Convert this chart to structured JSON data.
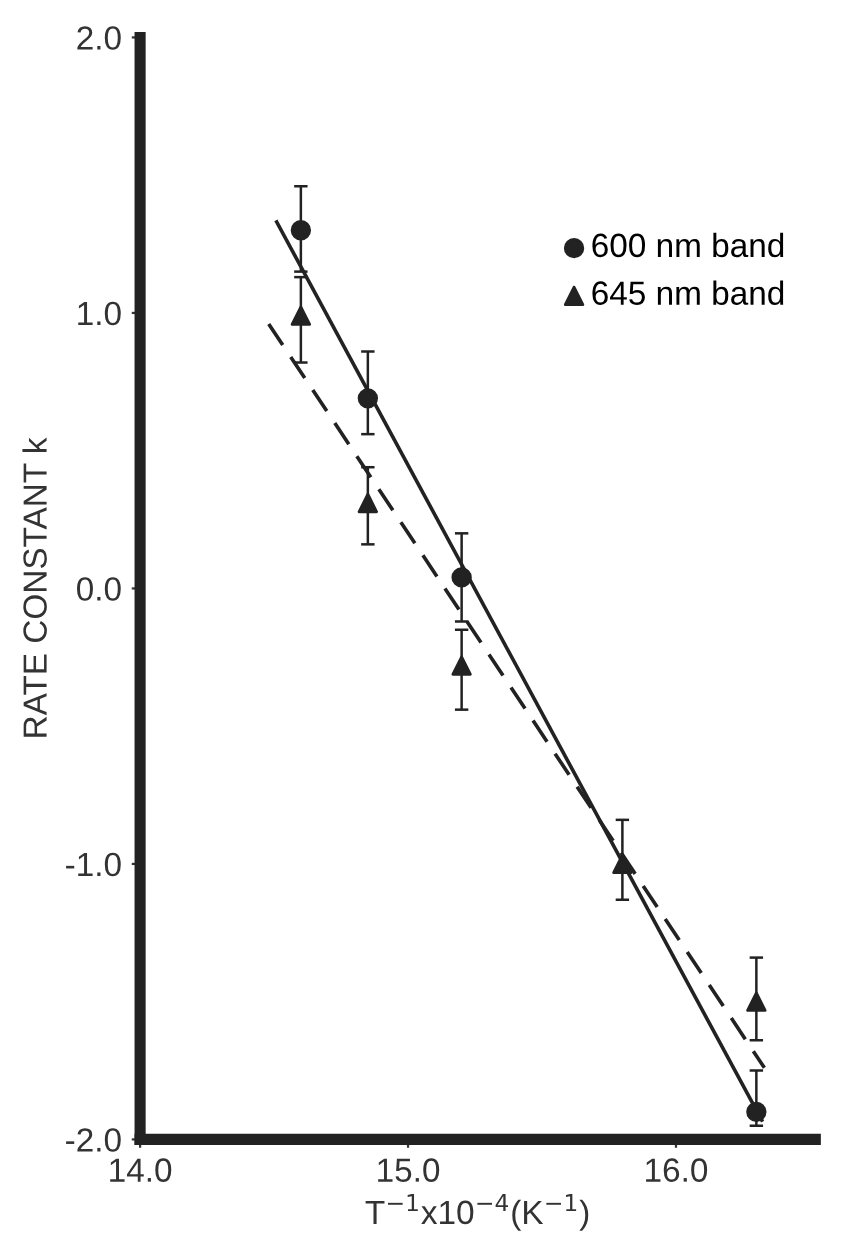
{
  "chart_data": {
    "type": "scatter",
    "xlabel": "T$^{−1}$x10$^{−4}$(K$^{−1}$)",
    "ylabel": "RATE CONSTANT k",
    "x": [
      14.6,
      14.85,
      15.2,
      15.8,
      16.3
    ],
    "series": [
      {
        "name": "600 nm band",
        "color": "#222222",
        "marker": "circle",
        "values": [
          1.3,
          0.69,
          0.04,
          null,
          -1.9
        ],
        "errors": [
          [
            1.15,
            1.46
          ],
          [
            0.56,
            0.86
          ],
          [
            -0.12,
            0.2
          ],
          null,
          [
            -1.95,
            -1.75
          ]
        ]
      },
      {
        "name": "645 nm band",
        "color": "#222222",
        "marker": "triangle",
        "values": [
          0.99,
          0.31,
          -0.28,
          -1.0,
          -1.5
        ],
        "errors": [
          [
            0.82,
            1.13
          ],
          [
            0.16,
            0.44
          ],
          [
            -0.44,
            -0.15
          ],
          [
            -1.13,
            -0.84
          ],
          [
            -1.64,
            -1.34
          ]
        ]
      },
      {
        "type": "line",
        "color": "#222222",
        "line_style": "solid",
        "marker": "none",
        "x": [
          14.51,
          16.32
        ],
        "values": [
          1.33,
          -1.93
        ]
      },
      {
        "type": "line",
        "color": "#222222",
        "line_style": "dashed",
        "marker": "none",
        "x": [
          14.48,
          16.33
        ],
        "values": [
          0.96,
          -1.74
        ]
      }
    ],
    "xlim": [
      14.0,
      16.52
    ],
    "ylim": [
      -2.0,
      2.0
    ],
    "xticks": [
      {
        "value": 14.0,
        "label": "14.0"
      },
      {
        "value": 15.0,
        "label": "15.0"
      },
      {
        "value": 16.0,
        "label": "16.0"
      }
    ],
    "yticks": [
      {
        "value": -2.0,
        "label": "-2.0"
      },
      {
        "value": -1.0,
        "label": "-1.0"
      },
      {
        "value": 0.0,
        "label": "0.0"
      },
      {
        "value": 1.0,
        "label": "1.0"
      },
      {
        "value": 2.0,
        "label": "2.0"
      }
    ],
    "grid": false,
    "legend": "top right"
  }
}
